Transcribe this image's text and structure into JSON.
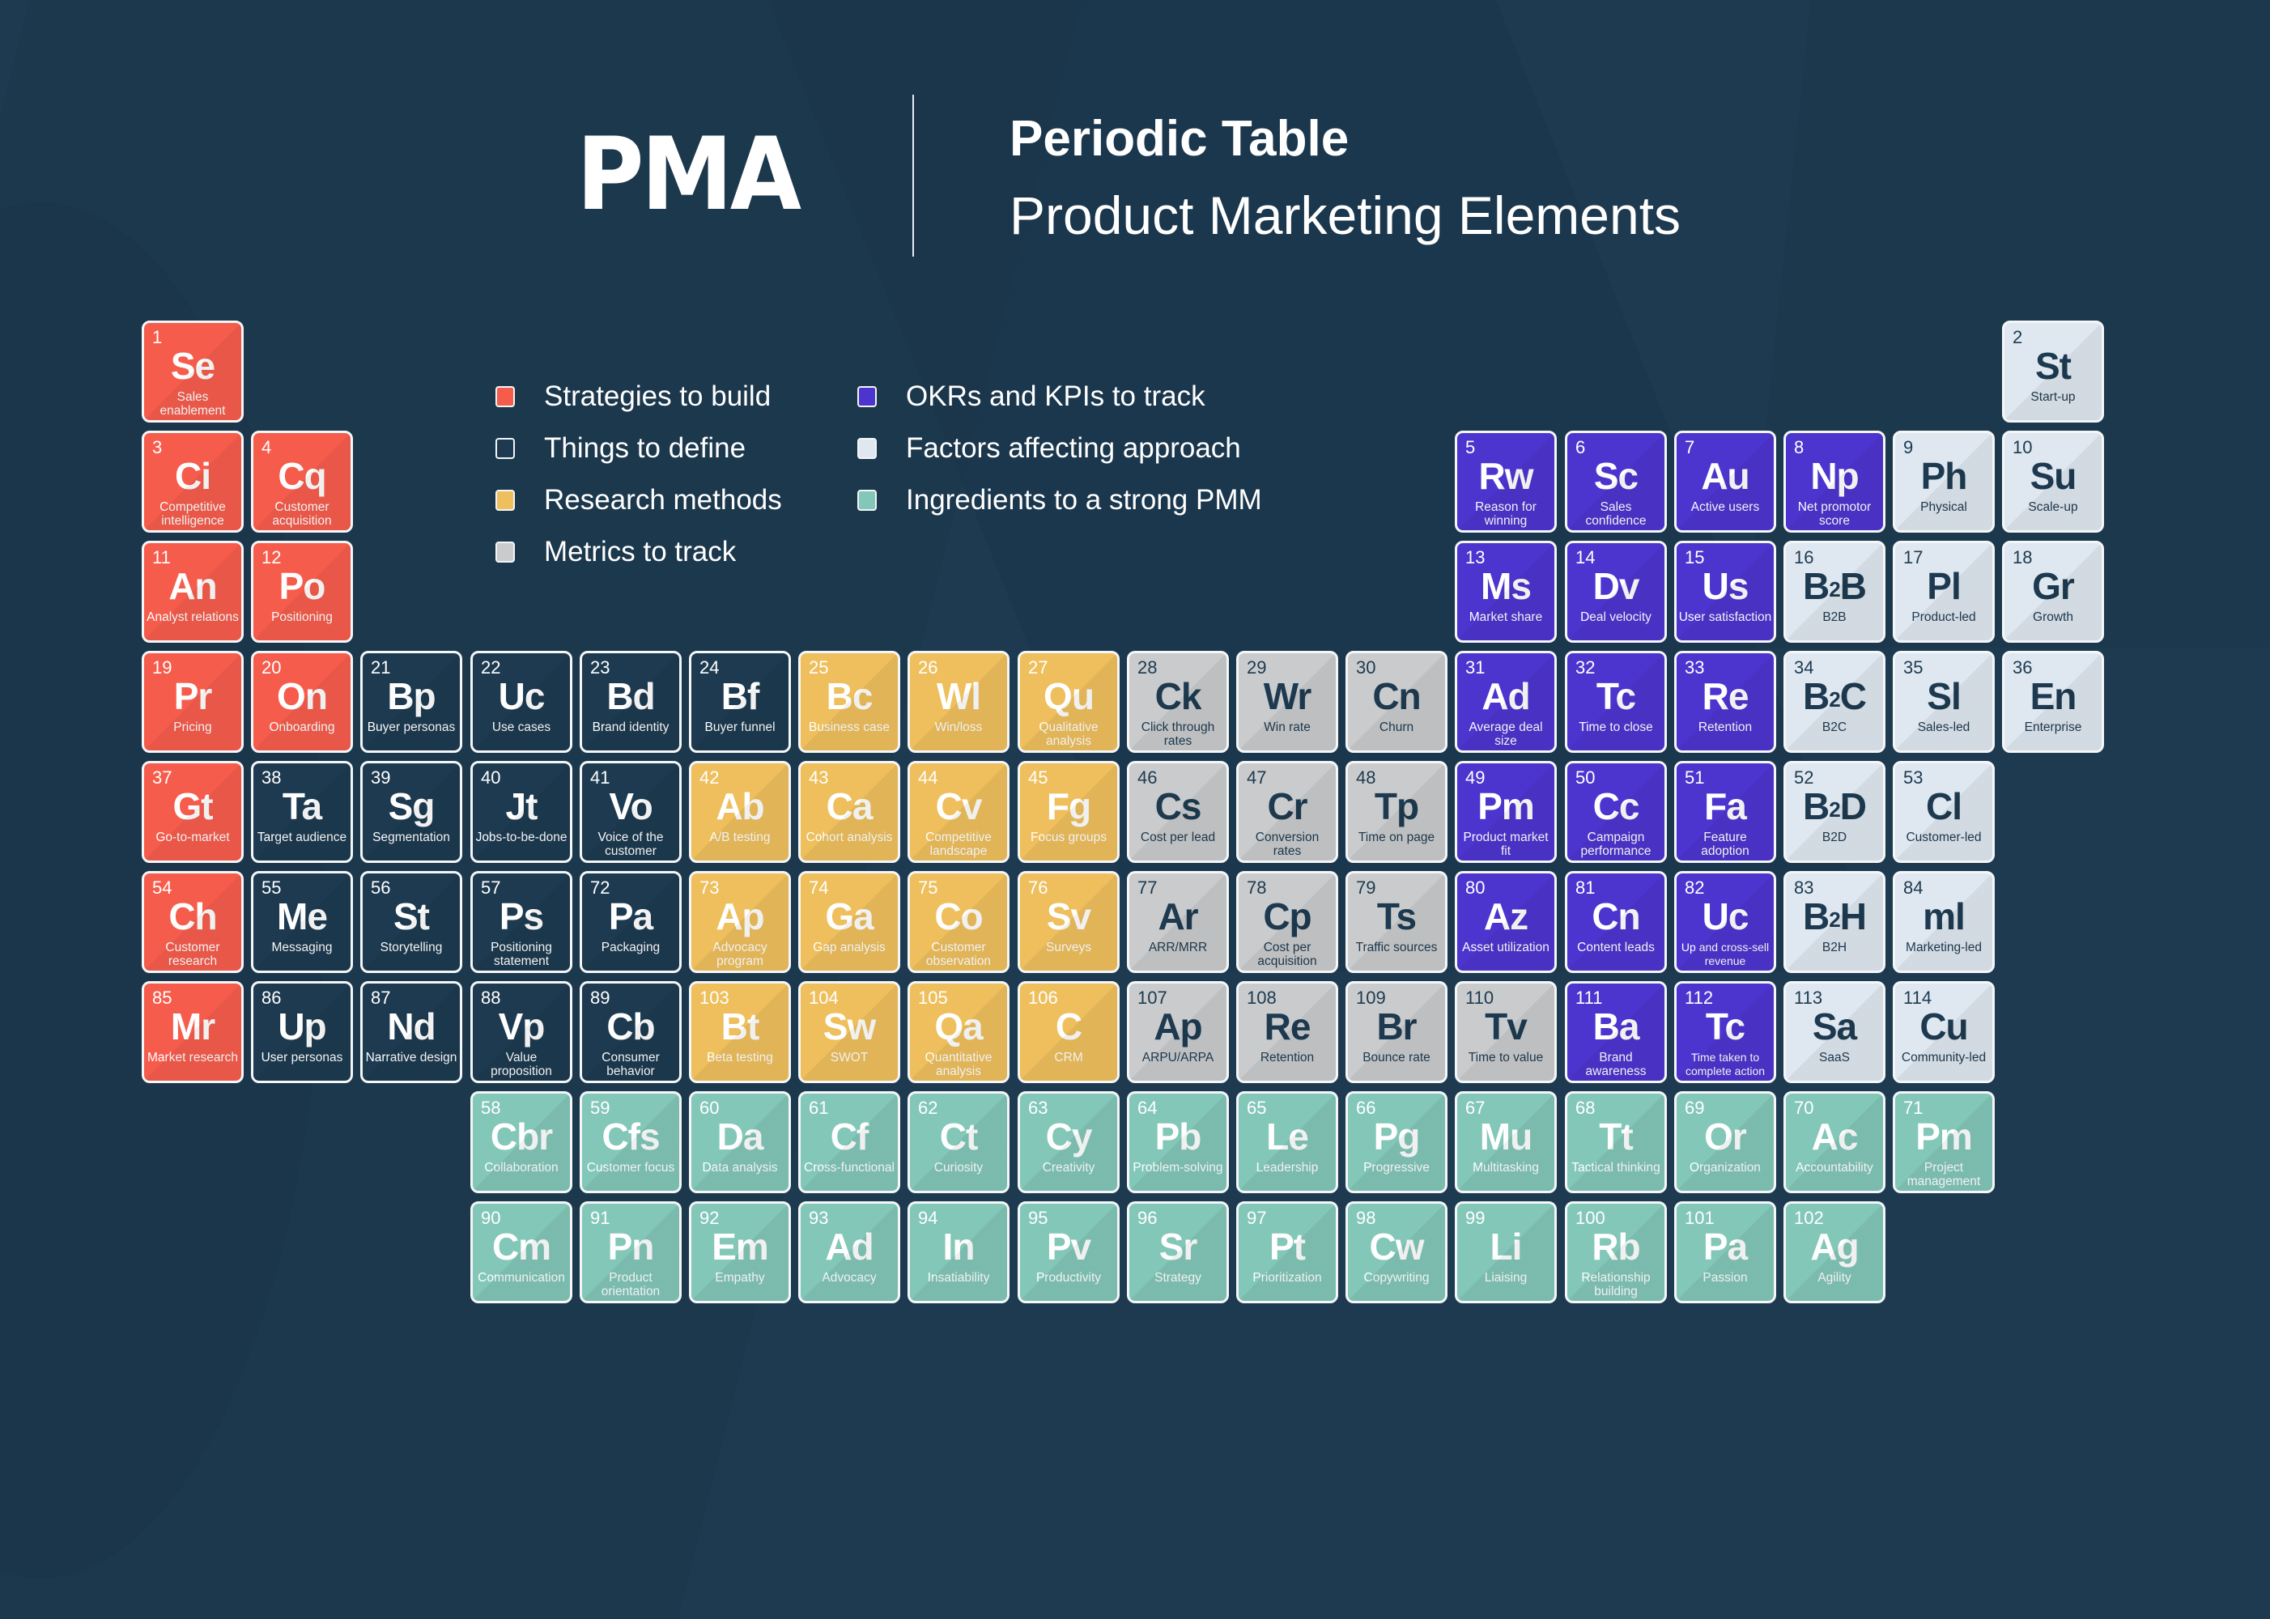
{
  "header": {
    "logo_text": "PMA",
    "title": "Periodic Table",
    "subtitle": "Product Marketing Elements"
  },
  "colors": {
    "background": "#1d3a50",
    "red": "#f65c4c",
    "dark": "#1d3a50",
    "yellow": "#eebf5c",
    "gray": "#cacbcc",
    "purple": "#4c34cf",
    "light": "#dfe7f0",
    "teal": "#83c7b9"
  },
  "legend": [
    {
      "label": "Strategies to build",
      "category": "red",
      "color": "#f65c4c"
    },
    {
      "label": "Things to define",
      "category": "dark",
      "color": "#1d3a50"
    },
    {
      "label": "Research methods",
      "category": "yellow",
      "color": "#eebf5c"
    },
    {
      "label": "Metrics to track",
      "category": "gray",
      "color": "#cacbcc"
    },
    {
      "label": "OKRs and KPIs to track",
      "category": "purple",
      "color": "#4c34cf"
    },
    {
      "label": "Factors affecting approach",
      "category": "light",
      "color": "#dfe7f0"
    },
    {
      "label": "Ingredients to a strong PMM",
      "category": "teal",
      "color": "#83c7b9"
    }
  ],
  "elements": [
    {
      "n": "1",
      "sym": "Se",
      "name": "Sales enablement",
      "cat": "red",
      "col": 0,
      "row": 0
    },
    {
      "n": "2",
      "sym": "St",
      "name": "Start-up",
      "cat": "light",
      "col": 17,
      "row": 0
    },
    {
      "n": "3",
      "sym": "Ci",
      "name": "Competitive intelligence",
      "cat": "red",
      "col": 0,
      "row": 1
    },
    {
      "n": "4",
      "sym": "Cq",
      "name": "Customer acquisition",
      "cat": "red",
      "col": 1,
      "row": 1
    },
    {
      "n": "5",
      "sym": "Rw",
      "name": "Reason for winning",
      "cat": "purple",
      "col": 12,
      "row": 1
    },
    {
      "n": "6",
      "sym": "Sc",
      "name": "Sales confidence",
      "cat": "purple",
      "col": 13,
      "row": 1
    },
    {
      "n": "7",
      "sym": "Au",
      "name": "Active users",
      "cat": "purple",
      "col": 14,
      "row": 1
    },
    {
      "n": "8",
      "sym": "Np",
      "name": "Net promotor score",
      "cat": "purple",
      "col": 15,
      "row": 1
    },
    {
      "n": "9",
      "sym": "Ph",
      "name": "Physical",
      "cat": "light",
      "col": 16,
      "row": 1
    },
    {
      "n": "10",
      "sym": "Su",
      "name": "Scale-up",
      "cat": "light",
      "col": 17,
      "row": 1
    },
    {
      "n": "11",
      "sym": "An",
      "name": "Analyst relations",
      "cat": "red",
      "col": 0,
      "row": 2
    },
    {
      "n": "12",
      "sym": "Po",
      "name": "Positioning",
      "cat": "red",
      "col": 1,
      "row": 2
    },
    {
      "n": "13",
      "sym": "Ms",
      "name": "Market share",
      "cat": "purple",
      "col": 12,
      "row": 2
    },
    {
      "n": "14",
      "sym": "Dv",
      "name": "Deal velocity",
      "cat": "purple",
      "col": 13,
      "row": 2
    },
    {
      "n": "15",
      "sym": "Us",
      "name": "User satisfaction",
      "cat": "purple",
      "col": 14,
      "row": 2
    },
    {
      "n": "16",
      "sym": "B²B",
      "name": "B2B",
      "cat": "light",
      "col": 15,
      "row": 2
    },
    {
      "n": "17",
      "sym": "Pl",
      "name": "Product-led",
      "cat": "light",
      "col": 16,
      "row": 2
    },
    {
      "n": "18",
      "sym": "Gr",
      "name": "Growth",
      "cat": "light",
      "col": 17,
      "row": 2
    },
    {
      "n": "19",
      "sym": "Pr",
      "name": "Pricing",
      "cat": "red",
      "col": 0,
      "row": 3
    },
    {
      "n": "20",
      "sym": "On",
      "name": "Onboarding",
      "cat": "red",
      "col": 1,
      "row": 3
    },
    {
      "n": "21",
      "sym": "Bp",
      "name": "Buyer personas",
      "cat": "dark",
      "col": 2,
      "row": 3
    },
    {
      "n": "22",
      "sym": "Uc",
      "name": "Use cases",
      "cat": "dark",
      "col": 3,
      "row": 3
    },
    {
      "n": "23",
      "sym": "Bd",
      "name": "Brand identity",
      "cat": "dark",
      "col": 4,
      "row": 3
    },
    {
      "n": "24",
      "sym": "Bf",
      "name": "Buyer funnel",
      "cat": "dark",
      "col": 5,
      "row": 3
    },
    {
      "n": "25",
      "sym": "Bc",
      "name": "Business case",
      "cat": "yellow",
      "col": 6,
      "row": 3
    },
    {
      "n": "26",
      "sym": "Wl",
      "name": "Win/loss",
      "cat": "yellow",
      "col": 7,
      "row": 3
    },
    {
      "n": "27",
      "sym": "Qu",
      "name": "Qualitative analysis",
      "cat": "yellow",
      "col": 8,
      "row": 3
    },
    {
      "n": "28",
      "sym": "Ck",
      "name": "Click through rates",
      "cat": "gray",
      "col": 9,
      "row": 3
    },
    {
      "n": "29",
      "sym": "Wr",
      "name": "Win rate",
      "cat": "gray",
      "col": 10,
      "row": 3
    },
    {
      "n": "30",
      "sym": "Cn",
      "name": "Churn",
      "cat": "gray",
      "col": 11,
      "row": 3
    },
    {
      "n": "31",
      "sym": "Ad",
      "name": "Average deal size",
      "cat": "purple",
      "col": 12,
      "row": 3
    },
    {
      "n": "32",
      "sym": "Tc",
      "name": "Time to close",
      "cat": "purple",
      "col": 13,
      "row": 3
    },
    {
      "n": "33",
      "sym": "Re",
      "name": "Retention",
      "cat": "purple",
      "col": 14,
      "row": 3
    },
    {
      "n": "34",
      "sym": "B²C",
      "name": "B2C",
      "cat": "light",
      "col": 15,
      "row": 3
    },
    {
      "n": "35",
      "sym": "Sl",
      "name": "Sales-led",
      "cat": "light",
      "col": 16,
      "row": 3
    },
    {
      "n": "36",
      "sym": "En",
      "name": "Enterprise",
      "cat": "light",
      "col": 17,
      "row": 3
    },
    {
      "n": "37",
      "sym": "Gt",
      "name": "Go-to-market",
      "cat": "red",
      "col": 0,
      "row": 4
    },
    {
      "n": "38",
      "sym": "Ta",
      "name": "Target audience",
      "cat": "dark",
      "col": 1,
      "row": 4
    },
    {
      "n": "39",
      "sym": "Sg",
      "name": "Segmentation",
      "cat": "dark",
      "col": 2,
      "row": 4
    },
    {
      "n": "40",
      "sym": "Jt",
      "name": "Jobs-to-be-done",
      "cat": "dark",
      "col": 3,
      "row": 4
    },
    {
      "n": "41",
      "sym": "Vo",
      "name": "Voice of the customer",
      "cat": "dark",
      "col": 4,
      "row": 4
    },
    {
      "n": "42",
      "sym": "Ab",
      "name": "A/B testing",
      "cat": "yellow",
      "col": 5,
      "row": 4
    },
    {
      "n": "43",
      "sym": "Ca",
      "name": "Cohort analysis",
      "cat": "yellow",
      "col": 6,
      "row": 4
    },
    {
      "n": "44",
      "sym": "Cv",
      "name": "Competitive landscape",
      "cat": "yellow",
      "col": 7,
      "row": 4
    },
    {
      "n": "45",
      "sym": "Fg",
      "name": "Focus groups",
      "cat": "yellow",
      "col": 8,
      "row": 4
    },
    {
      "n": "46",
      "sym": "Cs",
      "name": "Cost per lead",
      "cat": "gray",
      "col": 9,
      "row": 4
    },
    {
      "n": "47",
      "sym": "Cr",
      "name": "Conversion rates",
      "cat": "gray",
      "col": 10,
      "row": 4
    },
    {
      "n": "48",
      "sym": "Tp",
      "name": "Time on page",
      "cat": "gray",
      "col": 11,
      "row": 4
    },
    {
      "n": "49",
      "sym": "Pm",
      "name": "Product market fit",
      "cat": "purple",
      "col": 12,
      "row": 4
    },
    {
      "n": "50",
      "sym": "Cc",
      "name": "Campaign performance",
      "cat": "purple",
      "col": 13,
      "row": 4
    },
    {
      "n": "51",
      "sym": "Fa",
      "name": "Feature adoption",
      "cat": "purple",
      "col": 14,
      "row": 4
    },
    {
      "n": "52",
      "sym": "B²D",
      "name": "B2D",
      "cat": "light",
      "col": 15,
      "row": 4
    },
    {
      "n": "53",
      "sym": "Cl",
      "name": "Customer-led",
      "cat": "light",
      "col": 16,
      "row": 4
    },
    {
      "n": "54",
      "sym": "Ch",
      "name": "Customer research",
      "cat": "red",
      "col": 0,
      "row": 5
    },
    {
      "n": "55",
      "sym": "Me",
      "name": "Messaging",
      "cat": "dark",
      "col": 1,
      "row": 5
    },
    {
      "n": "56",
      "sym": "St",
      "name": "Storytelling",
      "cat": "dark",
      "col": 2,
      "row": 5
    },
    {
      "n": "57",
      "sym": "Ps",
      "name": "Positioning statement",
      "cat": "dark",
      "col": 3,
      "row": 5
    },
    {
      "n": "72",
      "sym": "Pa",
      "name": "Packaging",
      "cat": "dark",
      "col": 4,
      "row": 5
    },
    {
      "n": "73",
      "sym": "Ap",
      "name": "Advocacy program",
      "cat": "yellow",
      "col": 5,
      "row": 5
    },
    {
      "n": "74",
      "sym": "Ga",
      "name": "Gap analysis",
      "cat": "yellow",
      "col": 6,
      "row": 5
    },
    {
      "n": "75",
      "sym": "Co",
      "name": "Customer observation",
      "cat": "yellow",
      "col": 7,
      "row": 5
    },
    {
      "n": "76",
      "sym": "Sv",
      "name": "Surveys",
      "cat": "yellow",
      "col": 8,
      "row": 5
    },
    {
      "n": "77",
      "sym": "Ar",
      "name": "ARR/MRR",
      "cat": "gray",
      "col": 9,
      "row": 5
    },
    {
      "n": "78",
      "sym": "Cp",
      "name": "Cost per acquisition",
      "cat": "gray",
      "col": 10,
      "row": 5
    },
    {
      "n": "79",
      "sym": "Ts",
      "name": "Traffic sources",
      "cat": "gray",
      "col": 11,
      "row": 5
    },
    {
      "n": "80",
      "sym": "Az",
      "name": "Asset utilization",
      "cat": "purple",
      "col": 12,
      "row": 5
    },
    {
      "n": "81",
      "sym": "Cn",
      "name": "Content leads",
      "cat": "purple",
      "col": 13,
      "row": 5
    },
    {
      "n": "82",
      "sym": "Uc",
      "name": "Up and cross-sell revenue",
      "cat": "purple",
      "col": 14,
      "row": 5
    },
    {
      "n": "83",
      "sym": "B²H",
      "name": "B2H",
      "cat": "light",
      "col": 15,
      "row": 5
    },
    {
      "n": "84",
      "sym": "ml",
      "name": "Marketing-led",
      "cat": "light",
      "col": 16,
      "row": 5
    },
    {
      "n": "85",
      "sym": "Mr",
      "name": "Market research",
      "cat": "red",
      "col": 0,
      "row": 6
    },
    {
      "n": "86",
      "sym": "Up",
      "name": "User personas",
      "cat": "dark",
      "col": 1,
      "row": 6
    },
    {
      "n": "87",
      "sym": "Nd",
      "name": "Narrative design",
      "cat": "dark",
      "col": 2,
      "row": 6
    },
    {
      "n": "88",
      "sym": "Vp",
      "name": "Value proposition",
      "cat": "dark",
      "col": 3,
      "row": 6
    },
    {
      "n": "89",
      "sym": "Cb",
      "name": "Consumer behavior",
      "cat": "dark",
      "col": 4,
      "row": 6
    },
    {
      "n": "103",
      "sym": "Bt",
      "name": "Beta testing",
      "cat": "yellow",
      "col": 5,
      "row": 6
    },
    {
      "n": "104",
      "sym": "Sw",
      "name": "SWOT",
      "cat": "yellow",
      "col": 6,
      "row": 6
    },
    {
      "n": "105",
      "sym": "Qa",
      "name": "Quantitative analysis",
      "cat": "yellow",
      "col": 7,
      "row": 6
    },
    {
      "n": "106",
      "sym": "C",
      "name": "CRM",
      "cat": "yellow",
      "col": 8,
      "row": 6
    },
    {
      "n": "107",
      "sym": "Ap",
      "name": "ARPU/ARPA",
      "cat": "gray",
      "col": 9,
      "row": 6
    },
    {
      "n": "108",
      "sym": "Re",
      "name": "Retention",
      "cat": "gray",
      "col": 10,
      "row": 6
    },
    {
      "n": "109",
      "sym": "Br",
      "name": "Bounce rate",
      "cat": "gray",
      "col": 11,
      "row": 6
    },
    {
      "n": "110",
      "sym": "Tv",
      "name": "Time to value",
      "cat": "gray",
      "col": 12,
      "row": 6
    },
    {
      "n": "111",
      "sym": "Ba",
      "name": "Brand awareness",
      "cat": "purple",
      "col": 13,
      "row": 6
    },
    {
      "n": "112",
      "sym": "Tc",
      "name": "Time taken to complete action",
      "cat": "purple",
      "col": 14,
      "row": 6
    },
    {
      "n": "113",
      "sym": "Sa",
      "name": "SaaS",
      "cat": "light",
      "col": 15,
      "row": 6
    },
    {
      "n": "114",
      "sym": "Cu",
      "name": "Community-led",
      "cat": "light",
      "col": 16,
      "row": 6
    },
    {
      "n": "58",
      "sym": "Cbr",
      "name": "Collaboration",
      "cat": "teal",
      "col": 3,
      "row": 7
    },
    {
      "n": "59",
      "sym": "Cfs",
      "name": "Customer focus",
      "cat": "teal",
      "col": 4,
      "row": 7
    },
    {
      "n": "60",
      "sym": "Da",
      "name": "Data analysis",
      "cat": "teal",
      "col": 5,
      "row": 7
    },
    {
      "n": "61",
      "sym": "Cf",
      "name": "Cross-functional",
      "cat": "teal",
      "col": 6,
      "row": 7
    },
    {
      "n": "62",
      "sym": "Ct",
      "name": "Curiosity",
      "cat": "teal",
      "col": 7,
      "row": 7
    },
    {
      "n": "63",
      "sym": "Cy",
      "name": "Creativity",
      "cat": "teal",
      "col": 8,
      "row": 7
    },
    {
      "n": "64",
      "sym": "Pb",
      "name": "Problem-solving",
      "cat": "teal",
      "col": 9,
      "row": 7
    },
    {
      "n": "65",
      "sym": "Le",
      "name": "Leadership",
      "cat": "teal",
      "col": 10,
      "row": 7
    },
    {
      "n": "66",
      "sym": "Pg",
      "name": "Progressive",
      "cat": "teal",
      "col": 11,
      "row": 7
    },
    {
      "n": "67",
      "sym": "Mu",
      "name": "Multitasking",
      "cat": "teal",
      "col": 12,
      "row": 7
    },
    {
      "n": "68",
      "sym": "Tt",
      "name": "Tactical thinking",
      "cat": "teal",
      "col": 13,
      "row": 7
    },
    {
      "n": "69",
      "sym": "Or",
      "name": "Organization",
      "cat": "teal",
      "col": 14,
      "row": 7
    },
    {
      "n": "70",
      "sym": "Ac",
      "name": "Accountability",
      "cat": "teal",
      "col": 15,
      "row": 7
    },
    {
      "n": "71",
      "sym": "Pm",
      "name": "Project management",
      "cat": "teal",
      "col": 16,
      "row": 7
    },
    {
      "n": "90",
      "sym": "Cm",
      "name": "Communication",
      "cat": "teal",
      "col": 3,
      "row": 8
    },
    {
      "n": "91",
      "sym": "Pn",
      "name": "Product orientation",
      "cat": "teal",
      "col": 4,
      "row": 8
    },
    {
      "n": "92",
      "sym": "Em",
      "name": "Empathy",
      "cat": "teal",
      "col": 5,
      "row": 8
    },
    {
      "n": "93",
      "sym": "Ad",
      "name": "Advocacy",
      "cat": "teal",
      "col": 6,
      "row": 8
    },
    {
      "n": "94",
      "sym": "In",
      "name": "Insatiability",
      "cat": "teal",
      "col": 7,
      "row": 8
    },
    {
      "n": "95",
      "sym": "Pv",
      "name": "Productivity",
      "cat": "teal",
      "col": 8,
      "row": 8
    },
    {
      "n": "96",
      "sym": "Sr",
      "name": "Strategy",
      "cat": "teal",
      "col": 9,
      "row": 8
    },
    {
      "n": "97",
      "sym": "Pt",
      "name": "Prioritization",
      "cat": "teal",
      "col": 10,
      "row": 8
    },
    {
      "n": "98",
      "sym": "Cw",
      "name": "Copywriting",
      "cat": "teal",
      "col": 11,
      "row": 8
    },
    {
      "n": "99",
      "sym": "Li",
      "name": "Liaising",
      "cat": "teal",
      "col": 12,
      "row": 8
    },
    {
      "n": "100",
      "sym": "Rb",
      "name": "Relationship building",
      "cat": "teal",
      "col": 13,
      "row": 8
    },
    {
      "n": "101",
      "sym": "Pa",
      "name": "Passion",
      "cat": "teal",
      "col": 14,
      "row": 8
    },
    {
      "n": "102",
      "sym": "Ag",
      "name": "Agility",
      "cat": "teal",
      "col": 15,
      "row": 8
    }
  ]
}
